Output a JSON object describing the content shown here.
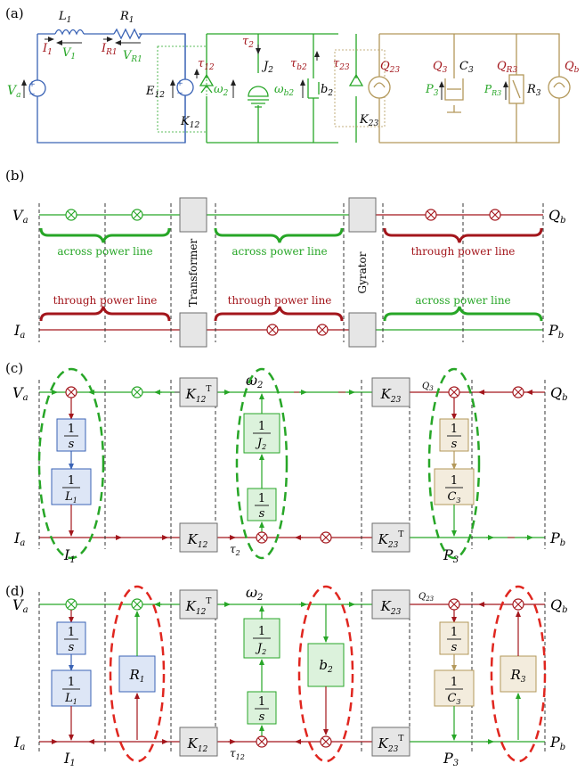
{
  "panels": {
    "a": "(a)",
    "b": "(b)",
    "c": "(c)",
    "d": "(d)"
  },
  "colors": {
    "blue": "#3a63b5",
    "green": "#27a627",
    "red": "#a3161c",
    "olive": "#b3985a",
    "gray": "#6e6e6e",
    "box": "#e6e6e6"
  },
  "circuit": {
    "L1": "L",
    "L1_sub": "1",
    "R1": "R",
    "R1_sub": "1",
    "I1": "I",
    "I1_sub": "1",
    "V1": "V",
    "V1_sub": "1",
    "IR1": "I",
    "IR1_sub": "R1",
    "VR1": "V",
    "VR1_sub": "R1",
    "Va": "V",
    "Va_sub": "a",
    "E12": "E",
    "E12_sub": "12",
    "tau12": "τ",
    "tau12_sub": "12",
    "K12": "K",
    "K12_sub": "12",
    "omega2": "ω",
    "omega2_sub": "2",
    "tau2": "τ",
    "tau2_sub": "2",
    "J2": "J",
    "J2_sub": "2",
    "omegab2": "ω",
    "omegab2_sub": "b2",
    "taub2": "τ",
    "taub2_sub": "b2",
    "b2": "b",
    "b2_sub": "2",
    "tau23": "τ",
    "tau23_sub": "23",
    "Q23": "Q",
    "Q23_sub": "23",
    "K23": "K",
    "K23_sub": "23",
    "Q3": "Q",
    "Q3_sub": "3",
    "C3": "C",
    "C3_sub": "3",
    "P3": "P",
    "P3_sub": "3",
    "QR3": "Q",
    "QR3_sub": "R3",
    "PR3": "P",
    "PR3_sub": "R3",
    "R3": "R",
    "R3_sub": "3",
    "Qb": "Q",
    "Qb_sub": "b"
  },
  "b": {
    "Va": "V",
    "Va_sub": "a",
    "Ia": "I",
    "Ia_sub": "a",
    "Qb": "Q",
    "Qb_sub": "b",
    "Pb": "P",
    "Pb_sub": "b",
    "across1": "across power line",
    "through1": "through power line",
    "transformer": "Transformer",
    "across2": "across power line",
    "through2": "through power line",
    "gyrator": "Gyrator",
    "through3": "through power line",
    "across3": "across power line"
  },
  "c": {
    "Va": "V",
    "Va_sub": "a",
    "Ia": "I",
    "Ia_sub": "a",
    "Qb": "Q",
    "Qb_sub": "b",
    "Pb": "P",
    "Pb_sub": "b",
    "s1": "s",
    "one": "1",
    "L1": "L",
    "L1_sub": "1",
    "I1": "I",
    "I1_sub": "1",
    "K12T": "K",
    "K12T_sub": "12",
    "K12T_sup": "T",
    "K12": "K",
    "K12_sub": "12",
    "omega2": "ω",
    "omega2_sub": "2",
    "J2": "J",
    "J2_sub": "2",
    "tau2": "τ",
    "tau2_sub": "2",
    "K23": "K",
    "K23_sub": "23",
    "K23T": "K",
    "K23T_sub": "23",
    "K23T_sup": "T",
    "Q3": "Q",
    "Q3_sub": "3",
    "C3": "C",
    "C3_sub": "3",
    "P3": "P",
    "P3_sub": "3"
  },
  "d": {
    "Va": "V",
    "Va_sub": "a",
    "Ia": "I",
    "Ia_sub": "a",
    "Qb": "Q",
    "Qb_sub": "b",
    "Pb": "P",
    "Pb_sub": "b",
    "I1": "I",
    "I1_sub": "1",
    "R1": "R",
    "R1_sub": "1",
    "K12T": "K",
    "K12T_sub": "12",
    "K12T_sup": "T",
    "K12": "K",
    "K12_sub": "12",
    "omega2": "ω",
    "omega2_sub": "2",
    "tau12": "τ",
    "tau12_sub": "12",
    "b2": "b",
    "b2_sub": "2",
    "K23": "K",
    "K23_sub": "23",
    "K23T": "K",
    "K23T_sub": "23",
    "K23T_sup": "T",
    "Q23": "Q",
    "Q23_sub": "23",
    "P3": "P",
    "P3_sub": "3",
    "R3": "R",
    "R3_sub": "3"
  }
}
